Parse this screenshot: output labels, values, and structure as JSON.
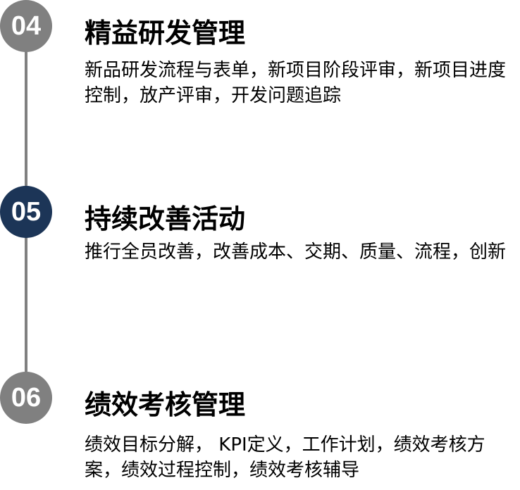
{
  "colors": {
    "gray": "#808080",
    "navy": "#1c3557",
    "line": "#808080"
  },
  "items": [
    {
      "number": "04",
      "title": "精益研发管理",
      "description": "新品研发流程与表单，新项目阶段评审，新项目进度控制，放产评审，开发问题追踪",
      "color": "#808080"
    },
    {
      "number": "05",
      "title": "持续改善活动",
      "description": "推行全员改善，改善成本、交期、质量、流程，创新",
      "color": "#1c3557"
    },
    {
      "number": "06",
      "title": "绩效考核管理",
      "description": "绩效目标分解， KPI定义，工作计划，绩效考核方案，绩效过程控制，绩效考核辅导",
      "color": "#808080"
    }
  ]
}
